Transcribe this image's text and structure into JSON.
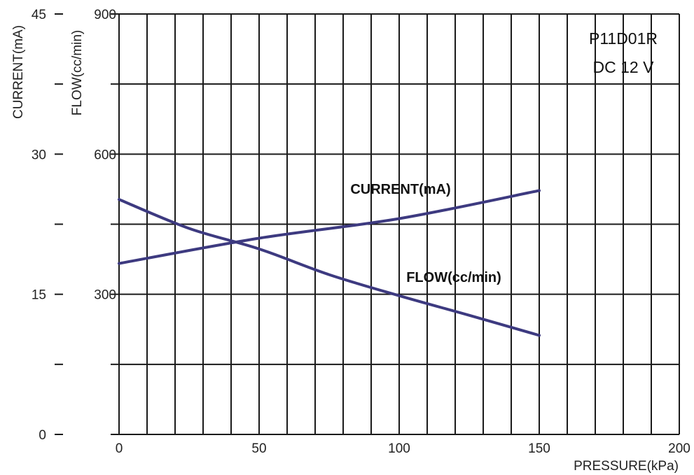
{
  "chart_data": {
    "type": "line",
    "title": "",
    "xlabel": "PRESSURE(kPa)",
    "ylabel_left_outer": "CURRENT(mA)",
    "ylabel_left_inner": "FLOW(cc/min)",
    "xlim": [
      0,
      200
    ],
    "ylim_current": [
      0,
      45
    ],
    "ylim_flow": [
      0,
      900
    ],
    "x_ticks": [
      "0",
      "50",
      "100",
      "150",
      "200"
    ],
    "current_ticks": [
      "0",
      "15",
      "30",
      "45"
    ],
    "flow_ticks": [
      "300",
      "600",
      "900"
    ],
    "grid": true,
    "annotation": [
      "P11D01R",
      "DC 12 V"
    ],
    "series": [
      {
        "name": "CURRENT(mA)",
        "axis": "current",
        "x": [
          0,
          50,
          100,
          150
        ],
        "y": [
          18.3,
          21.0,
          23.1,
          26.1
        ]
      },
      {
        "name": "FLOW(cc/min)",
        "axis": "flow",
        "x": [
          0,
          25,
          50,
          75,
          100,
          125,
          150
        ],
        "y": [
          503,
          441,
          397,
          342,
          297,
          255,
          212
        ]
      }
    ],
    "colors": {
      "series": "#3d3a80",
      "grid": "#1a1a1a"
    }
  }
}
